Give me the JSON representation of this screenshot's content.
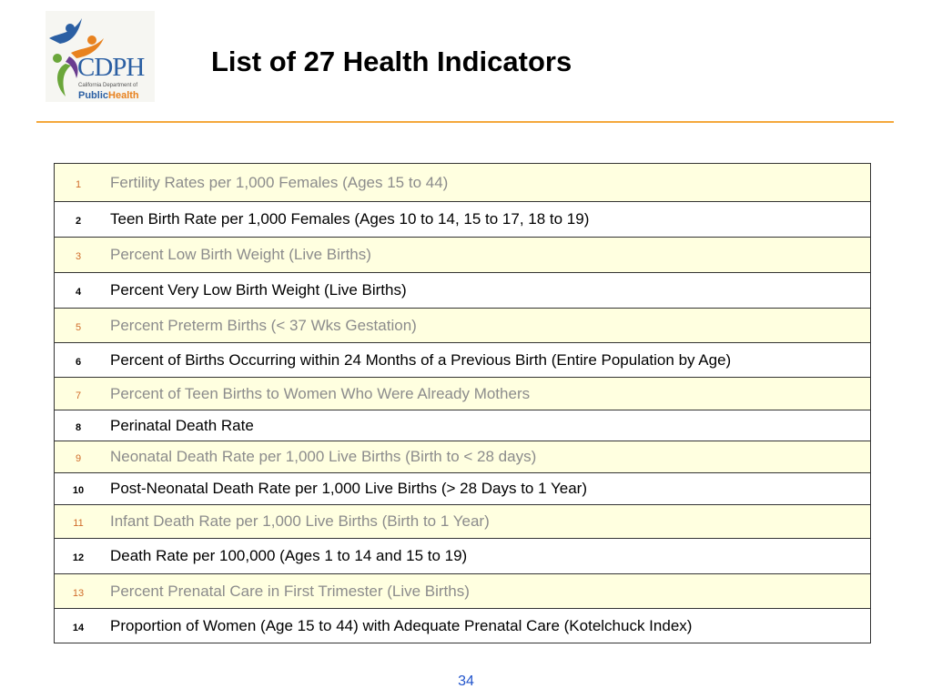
{
  "logo": {
    "abbr": "CDPH",
    "department": "California Department of",
    "public": "Public",
    "health": "Health",
    "colors": {
      "blue": "#2b5fa3",
      "orange": "#e8821f",
      "green": "#6aa63a",
      "purple": "#6a3d8f"
    }
  },
  "slide": {
    "title": "List of 27 Health Indicators",
    "page_number": "34",
    "rule_color": "#f4a83c"
  },
  "indicators": [
    {
      "num": "1",
      "label": "Fertility Rates per 1,000 Females (Ages 15 to 44)"
    },
    {
      "num": "2",
      "label": "Teen Birth Rate per 1,000 Females (Ages 10 to 14, 15 to 17, 18 to 19)"
    },
    {
      "num": "3",
      "label": "Percent Low Birth Weight (Live Births)"
    },
    {
      "num": "4",
      "label": "Percent Very Low Birth Weight (Live Births)"
    },
    {
      "num": "5",
      "label": "Percent Preterm Births (< 37 Wks Gestation)"
    },
    {
      "num": "6",
      "label": "Percent of Births Occurring within 24 Months of a Previous Birth (Entire Population by Age)"
    },
    {
      "num": "7",
      "label": "Percent of Teen Births to Women Who Were Already Mothers"
    },
    {
      "num": "8",
      "label": "Perinatal Death Rate"
    },
    {
      "num": "9",
      "label": "Neonatal Death Rate per 1,000 Live Births (Birth to < 28 days)"
    },
    {
      "num": "10",
      "label": "Post-Neonatal Death Rate per 1,000 Live Births (> 28 Days to 1 Year)"
    },
    {
      "num": "11",
      "label": "Infant Death Rate per 1,000 Live Births (Birth to 1 Year)"
    },
    {
      "num": "12",
      "label": "Death Rate per 100,000 (Ages 1 to 14 and 15 to 19)"
    },
    {
      "num": "13",
      "label": "Percent Prenatal Care in First Trimester (Live Births)"
    },
    {
      "num": "14",
      "label": "Proportion of Women (Age 15 to 44) with Adequate Prenatal Care (Kotelchuck Index)"
    }
  ]
}
